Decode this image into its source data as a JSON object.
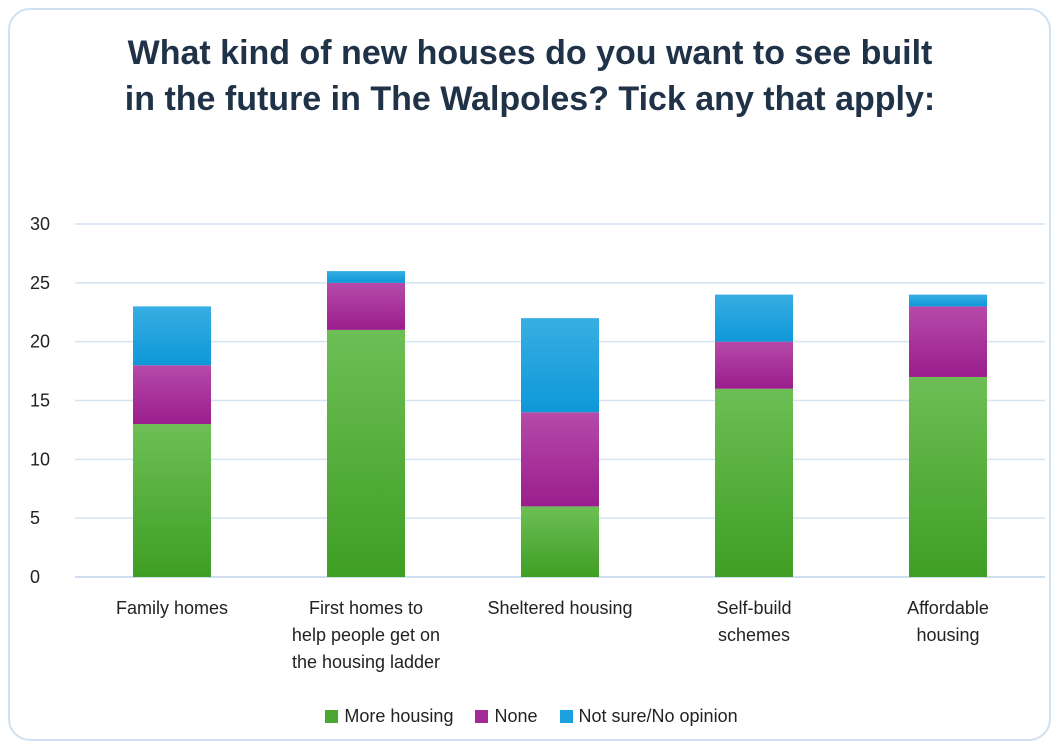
{
  "chart_data": {
    "type": "bar",
    "stacked": true,
    "title": "What kind of new houses do you want to see built in the future in The Walpoles? Tick any that apply:",
    "categories": [
      [
        "Family homes"
      ],
      [
        "First homes to",
        "help people get on",
        "the housing ladder"
      ],
      [
        "Sheltered housing"
      ],
      [
        "Self-build",
        "schemes"
      ],
      [
        "Affordable",
        "housing"
      ]
    ],
    "series": [
      {
        "name": "More housing",
        "color": "#4aa832",
        "values": [
          13,
          21,
          6,
          16,
          17
        ]
      },
      {
        "name": "None",
        "color": "#a32a96",
        "values": [
          5,
          4,
          8,
          4,
          6
        ]
      },
      {
        "name": "Not sure/No opinion",
        "color": "#1ba1dd",
        "values": [
          5,
          1,
          8,
          4,
          1
        ]
      }
    ],
    "ylim": [
      0,
      30
    ],
    "yticks": [
      0,
      5,
      10,
      15,
      20,
      25,
      30
    ],
    "grid": true,
    "legend_position": "bottom"
  }
}
